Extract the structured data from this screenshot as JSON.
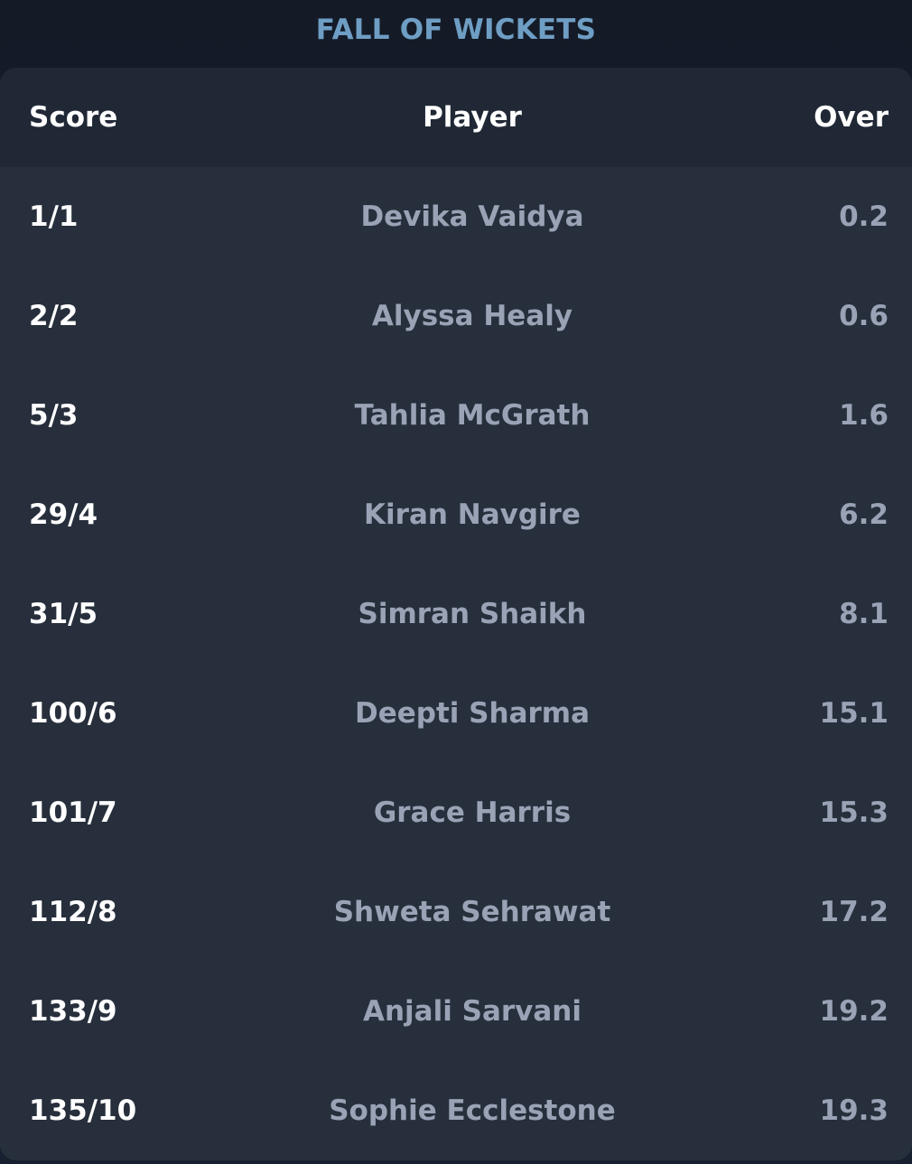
{
  "header": {
    "title": "FALL OF WICKETS"
  },
  "table": {
    "columns": {
      "score": "Score",
      "player": "Player",
      "over": "Over"
    },
    "rows": [
      {
        "score": "1/1",
        "player": "Devika Vaidya",
        "over": "0.2"
      },
      {
        "score": "2/2",
        "player": "Alyssa Healy",
        "over": "0.6"
      },
      {
        "score": "5/3",
        "player": "Tahlia McGrath",
        "over": "1.6"
      },
      {
        "score": "29/4",
        "player": "Kiran Navgire",
        "over": "6.2"
      },
      {
        "score": "31/5",
        "player": "Simran Shaikh",
        "over": "8.1"
      },
      {
        "score": "100/6",
        "player": "Deepti Sharma",
        "over": "15.1"
      },
      {
        "score": "101/7",
        "player": "Grace Harris",
        "over": "15.3"
      },
      {
        "score": "112/8",
        "player": "Shweta Sehrawat",
        "over": "17.2"
      },
      {
        "score": "133/9",
        "player": "Anjali Sarvani",
        "over": "19.2"
      },
      {
        "score": "135/10",
        "player": "Sophie Ecclestone",
        "over": "19.3"
      }
    ]
  },
  "colors": {
    "background": "#151c28",
    "card": "#272f3c",
    "header_row": "#202835",
    "title": "#6f9ec4",
    "muted_text": "#9aa3b6",
    "primary_text": "#ffffff"
  }
}
